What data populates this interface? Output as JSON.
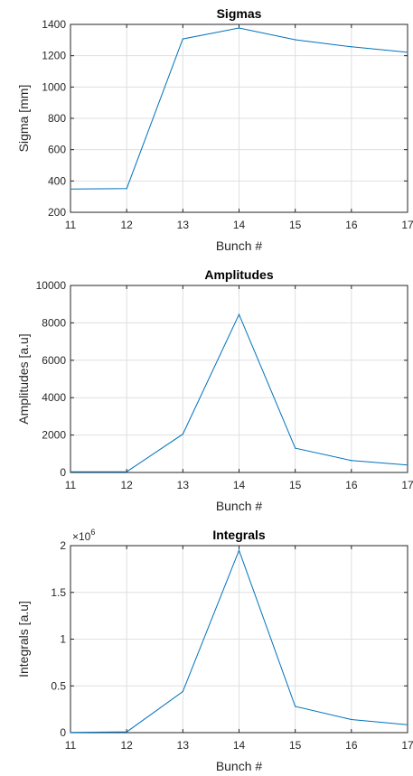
{
  "colors": {
    "line": "#0072BD",
    "grid": "#dfdfdf",
    "axis": "#262626"
  },
  "chart_data": [
    {
      "type": "line",
      "title": "Sigmas",
      "xlabel": "Bunch #",
      "ylabel": "Sigma [mm]",
      "x": [
        11,
        12,
        13,
        14,
        15,
        16,
        17
      ],
      "series": [
        {
          "values": [
            348,
            352,
            1307,
            1377,
            1302,
            1257,
            1222
          ]
        }
      ],
      "xlim": [
        11,
        17
      ],
      "ylim": [
        200,
        1400
      ],
      "xticks": [
        11,
        12,
        13,
        14,
        15,
        16,
        17
      ],
      "yticks": [
        200,
        400,
        600,
        800,
        1000,
        1200,
        1400
      ],
      "ytick_labels": [
        "200",
        "400",
        "600",
        "800",
        "1000",
        "1200",
        "1400"
      ],
      "grid": true
    },
    {
      "type": "line",
      "title": "Amplitudes",
      "xlabel": "Bunch #",
      "ylabel": "Amplitudes [a.u]",
      "x": [
        11,
        12,
        13,
        14,
        15,
        16,
        17
      ],
      "series": [
        {
          "values": [
            40,
            40,
            2050,
            8450,
            1300,
            640,
            400
          ]
        }
      ],
      "xlim": [
        11,
        17
      ],
      "ylim": [
        0,
        10000
      ],
      "xticks": [
        11,
        12,
        13,
        14,
        15,
        16,
        17
      ],
      "yticks": [
        0,
        2000,
        4000,
        6000,
        8000,
        10000
      ],
      "ytick_labels": [
        "0",
        "2000",
        "4000",
        "6000",
        "8000",
        "10000"
      ],
      "grid": true
    },
    {
      "type": "line",
      "title": "Integrals",
      "xlabel": "Bunch #",
      "ylabel": "Integrals [a.u]",
      "x": [
        11,
        12,
        13,
        14,
        15,
        16,
        17
      ],
      "series": [
        {
          "values": [
            3000,
            8000,
            440000,
            1950000,
            280000,
            140000,
            85000
          ]
        }
      ],
      "xlim": [
        11,
        17
      ],
      "ylim": [
        0,
        2000000
      ],
      "xticks": [
        11,
        12,
        13,
        14,
        15,
        16,
        17
      ],
      "yticks": [
        0,
        500000,
        1000000,
        1500000,
        2000000
      ],
      "ytick_labels": [
        "0",
        "0.5",
        "1",
        "1.5",
        "2"
      ],
      "y_exponent_base": "×10",
      "y_exponent": "6",
      "grid": true
    }
  ]
}
